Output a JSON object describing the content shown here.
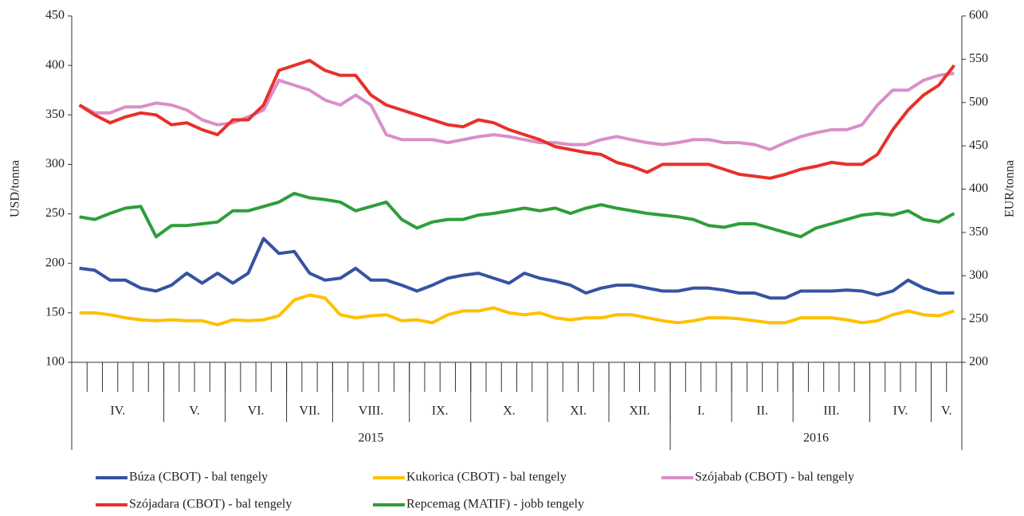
{
  "chart_data": {
    "type": "line",
    "y_label": "USD/tonna",
    "y2_label": "EUR/tonna",
    "ylim": [
      100,
      450
    ],
    "yticks": [
      100,
      150,
      200,
      250,
      300,
      350,
      400,
      450
    ],
    "y2lim": [
      200,
      600
    ],
    "y2ticks": [
      200,
      250,
      300,
      350,
      400,
      450,
      500,
      550,
      600
    ],
    "categories": [
      null,
      null,
      null,
      null,
      null,
      null,
      null,
      null,
      null,
      null,
      null,
      null,
      null,
      null,
      null,
      null,
      null,
      null,
      null,
      null,
      null,
      null,
      null,
      null,
      null,
      null,
      null,
      null,
      null,
      null,
      null,
      null,
      null,
      null,
      null,
      null,
      null,
      null,
      null,
      null,
      null,
      null,
      null,
      null,
      null,
      null,
      null,
      null,
      null,
      null,
      null,
      null,
      null,
      null,
      null,
      null,
      null,
      null
    ],
    "x_groups": [
      {
        "label": "IV.",
        "count": 6
      },
      {
        "label": "V.",
        "count": 4
      },
      {
        "label": "VI.",
        "count": 4
      },
      {
        "label": "VII.",
        "count": 3
      },
      {
        "label": "VIII.",
        "count": 5
      },
      {
        "label": "IX.",
        "count": 4
      },
      {
        "label": "X.",
        "count": 5
      },
      {
        "label": "XI.",
        "count": 4
      },
      {
        "label": "XII.",
        "count": 4
      },
      {
        "label": "I.",
        "count": 4
      },
      {
        "label": "II.",
        "count": 4
      },
      {
        "label": "III.",
        "count": 5
      },
      {
        "label": "IV.",
        "count": 4
      },
      {
        "label": "V.",
        "count": 2
      }
    ],
    "year_groups": [
      {
        "label": "2015",
        "count": 39
      },
      {
        "label": "2016",
        "count": 19
      }
    ],
    "series": [
      {
        "name": "Búza (CBOT) - bal tengely",
        "color": "#3653a3",
        "values": [
          195,
          193,
          183,
          183,
          175,
          172,
          178,
          190,
          180,
          190,
          180,
          190,
          225,
          210,
          212,
          190,
          183,
          185,
          195,
          183,
          183,
          178,
          172,
          178,
          185,
          188,
          190,
          185,
          180,
          190,
          185,
          182,
          178,
          170,
          175,
          178,
          178,
          175,
          172,
          172,
          175,
          175,
          173,
          170,
          170,
          165,
          165,
          172,
          172,
          172,
          173,
          172,
          168,
          172,
          183,
          175,
          170,
          170
        ]
      },
      {
        "name": "Kukorica (CBOT) - bal tengely",
        "color": "#ffc000",
        "values": [
          150,
          150,
          148,
          145,
          143,
          142,
          143,
          142,
          142,
          138,
          143,
          142,
          143,
          147,
          163,
          168,
          165,
          148,
          145,
          147,
          148,
          142,
          143,
          140,
          148,
          152,
          152,
          155,
          150,
          148,
          150,
          145,
          143,
          145,
          145,
          148,
          148,
          145,
          142,
          140,
          142,
          145,
          145,
          144,
          142,
          140,
          140,
          145,
          145,
          145,
          143,
          140,
          142,
          148,
          152,
          148,
          147,
          152
        ]
      },
      {
        "name": "Szójabab (CBOT) - bal tengely",
        "color": "#d98fc8",
        "values": [
          360,
          352,
          352,
          358,
          358,
          362,
          360,
          355,
          345,
          340,
          342,
          348,
          355,
          385,
          380,
          375,
          365,
          360,
          370,
          360,
          330,
          325,
          325,
          325,
          322,
          325,
          328,
          330,
          328,
          325,
          322,
          322,
          320,
          320,
          325,
          328,
          325,
          322,
          320,
          322,
          325,
          325,
          322,
          322,
          320,
          315,
          322,
          328,
          332,
          335,
          335,
          340,
          360,
          375,
          375,
          385,
          390,
          392
        ]
      },
      {
        "name": "Szójadara (CBOT) - bal tengely",
        "color": "#e8302a",
        "values": [
          360,
          350,
          342,
          348,
          352,
          350,
          340,
          342,
          335,
          330,
          345,
          345,
          360,
          395,
          400,
          405,
          395,
          390,
          390,
          370,
          360,
          355,
          350,
          345,
          340,
          338,
          345,
          342,
          335,
          330,
          325,
          318,
          315,
          312,
          310,
          302,
          298,
          292,
          300,
          300,
          300,
          300,
          295,
          290,
          288,
          286,
          290,
          295,
          298,
          302,
          300,
          300,
          310,
          335,
          355,
          370,
          380,
          400
        ]
      },
      {
        "name": "Repcemag (MATIF) - jobb tengely",
        "color": "#2e9e3a",
        "axis": "y2",
        "values": [
          368,
          365,
          372,
          378,
          380,
          345,
          358,
          358,
          360,
          362,
          375,
          375,
          380,
          385,
          395,
          390,
          388,
          385,
          375,
          380,
          385,
          365,
          355,
          362,
          365,
          365,
          370,
          372,
          375,
          378,
          375,
          378,
          372,
          378,
          382,
          378,
          375,
          372,
          370,
          368,
          365,
          358,
          356,
          360,
          360,
          355,
          350,
          345,
          355,
          360,
          365,
          370,
          372,
          370,
          375,
          365,
          362,
          372
        ]
      }
    ]
  }
}
